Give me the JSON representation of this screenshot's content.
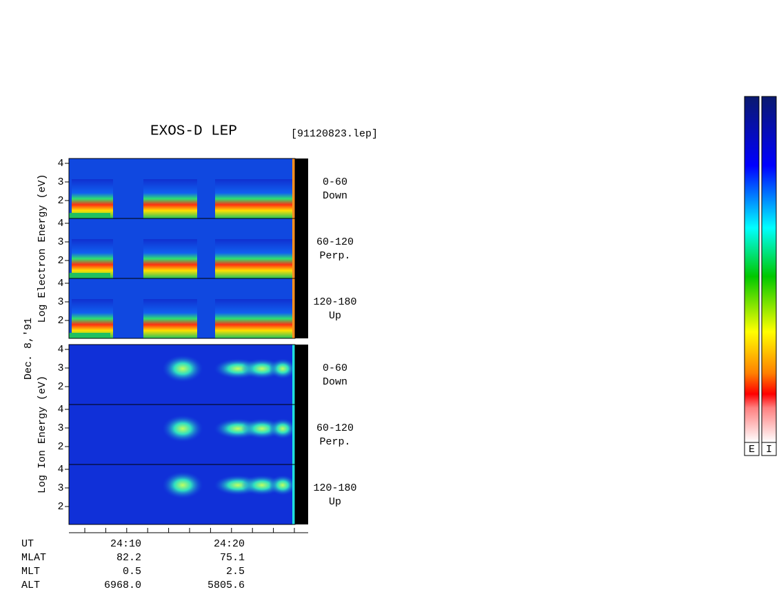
{
  "title": "EXOS-D LEP",
  "file": "[91120823.lep]",
  "date": "Dec. 8,'91",
  "yticks": [
    "4",
    "3",
    "2"
  ],
  "groups": [
    {
      "ylabel": "Log  Electron  Energy (eV)",
      "panels": [
        {
          "range": "0-60",
          "direction": "Down"
        },
        {
          "range": "60-120",
          "direction": "Perp."
        },
        {
          "range": "120-180",
          "direction": "Up"
        }
      ]
    },
    {
      "ylabel": "Log  Ion  Energy (eV)",
      "panels": [
        {
          "range": "0-60",
          "direction": "Down"
        },
        {
          "range": "60-120",
          "direction": "Perp."
        },
        {
          "range": "120-180",
          "direction": "Up"
        }
      ]
    }
  ],
  "ephemeris": [
    {
      "label": "UT",
      "values": [
        "24:10",
        "24:20"
      ]
    },
    {
      "label": "MLAT",
      "values": [
        "82.2",
        "75.1"
      ]
    },
    {
      "label": "MLT",
      "values": [
        "0.5",
        "2.5"
      ]
    },
    {
      "label": "ALT",
      "values": [
        "6968.0",
        "5805.6"
      ]
    }
  ],
  "colorbars": [
    "E",
    "I"
  ]
}
